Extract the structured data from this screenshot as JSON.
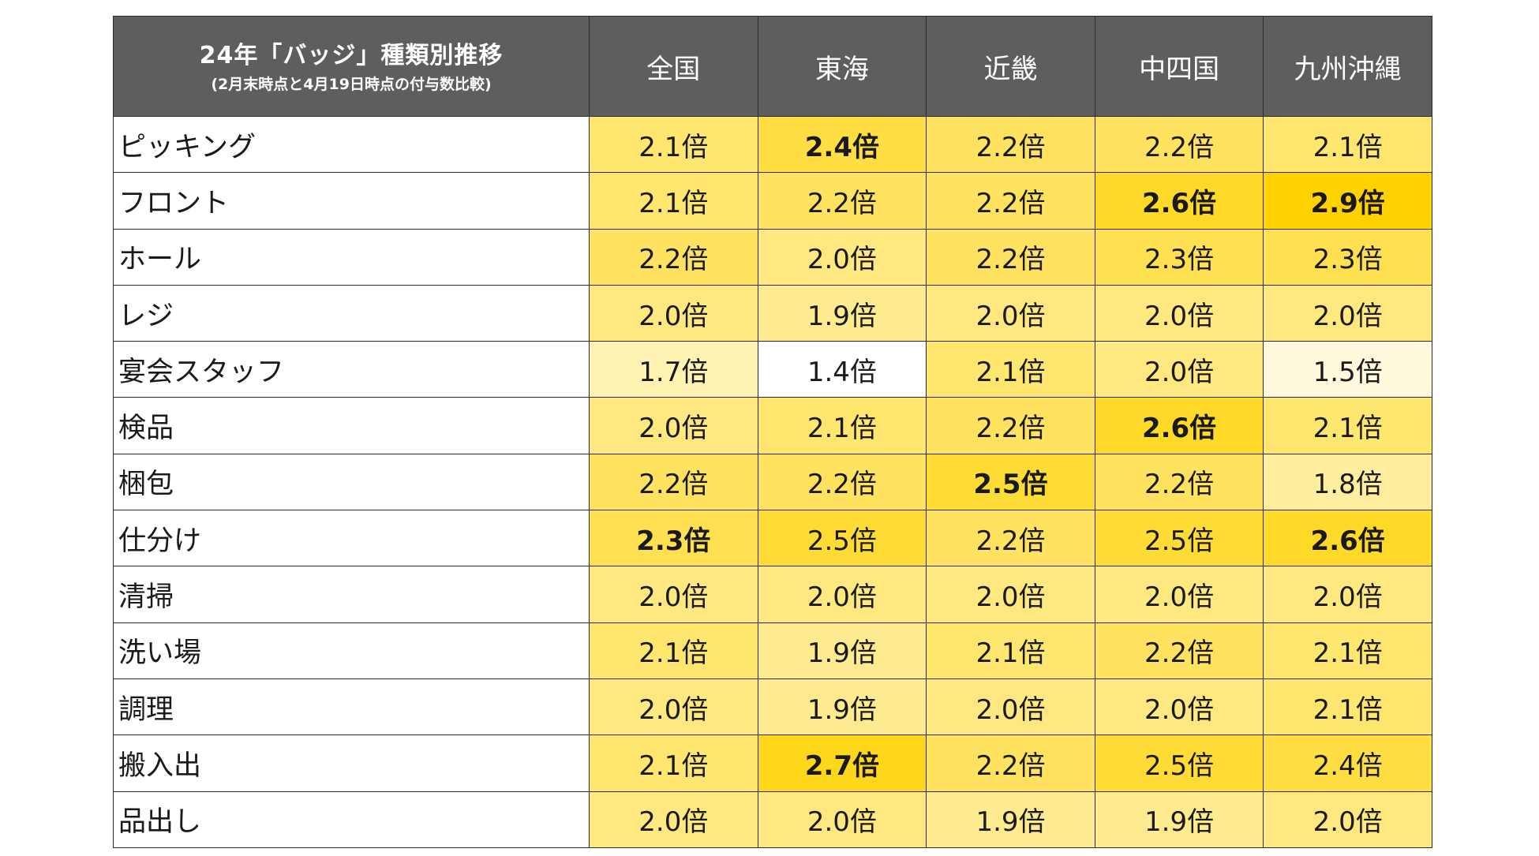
{
  "chart_data": {
    "type": "heatmap",
    "title": "24年「バッジ」種類別推移",
    "subtitle": "(2月末時点と4月19日時点の付与数比較)",
    "unit": "倍",
    "columns": [
      "全国",
      "東海",
      "近畿",
      "中四国",
      "九州沖縄"
    ],
    "rows": [
      {
        "label": "ピッキング",
        "values": [
          2.1,
          2.4,
          2.2,
          2.2,
          2.1
        ],
        "display": [
          "2.1倍",
          "2.4倍",
          "2.2倍",
          "2.2倍",
          "2.1倍"
        ]
      },
      {
        "label": "フロント",
        "values": [
          2.1,
          2.2,
          2.2,
          2.6,
          2.9
        ],
        "display": [
          "2.1倍",
          "2.2倍",
          "2.2倍",
          "2.6倍",
          "2.9倍"
        ]
      },
      {
        "label": "ホール",
        "values": [
          2.2,
          2.0,
          2.2,
          2.3,
          2.3
        ],
        "display": [
          "2.2倍",
          "2.0倍",
          "2.2倍",
          "2.3倍",
          "2.3倍"
        ]
      },
      {
        "label": "レジ",
        "values": [
          2.0,
          1.9,
          2.0,
          2.0,
          2.0
        ],
        "display": [
          "2.0倍",
          "1.9倍",
          "2.0倍",
          "2.0倍",
          "2.0倍"
        ]
      },
      {
        "label": "宴会スタッフ",
        "values": [
          1.7,
          1.4,
          2.1,
          2.0,
          1.5
        ],
        "display": [
          "1.7倍",
          "1.4倍",
          "2.1倍",
          "2.0倍",
          "1.5倍"
        ]
      },
      {
        "label": "検品",
        "values": [
          2.0,
          2.1,
          2.2,
          2.6,
          2.1
        ],
        "display": [
          "2.0倍",
          "2.1倍",
          "2.2倍",
          "2.6倍",
          "2.1倍"
        ]
      },
      {
        "label": "梱包",
        "values": [
          2.2,
          2.2,
          2.5,
          2.2,
          1.8
        ],
        "display": [
          "2.2倍",
          "2.2倍",
          "2.5倍",
          "2.2倍",
          "1.8倍"
        ]
      },
      {
        "label": "仕分け",
        "values": [
          2.3,
          2.5,
          2.2,
          2.5,
          2.6
        ],
        "display": [
          "2.3倍",
          "2.5倍",
          "2.2倍",
          "2.5倍",
          "2.6倍"
        ]
      },
      {
        "label": "清掃",
        "values": [
          2.0,
          2.0,
          2.0,
          2.0,
          2.0
        ],
        "display": [
          "2.0倍",
          "2.0倍",
          "2.0倍",
          "2.0倍",
          "2.0倍"
        ]
      },
      {
        "label": "洗い場",
        "values": [
          2.1,
          1.9,
          2.1,
          2.2,
          2.1
        ],
        "display": [
          "2.1倍",
          "1.9倍",
          "2.1倍",
          "2.2倍",
          "2.1倍"
        ]
      },
      {
        "label": "調理",
        "values": [
          2.0,
          1.9,
          2.0,
          2.0,
          2.1
        ],
        "display": [
          "2.0倍",
          "1.9倍",
          "2.0倍",
          "2.0倍",
          "2.1倍"
        ]
      },
      {
        "label": "搬入出",
        "values": [
          2.1,
          2.7,
          2.2,
          2.5,
          2.4
        ],
        "display": [
          "2.1倍",
          "2.7倍",
          "2.2倍",
          "2.5倍",
          "2.4倍"
        ]
      },
      {
        "label": "品出し",
        "values": [
          2.0,
          2.0,
          1.9,
          1.9,
          2.0
        ],
        "display": [
          "2.0倍",
          "2.0倍",
          "1.9倍",
          "1.9倍",
          "2.0倍"
        ]
      }
    ],
    "highlighted_max": [
      [
        false,
        true,
        false,
        false,
        false
      ],
      [
        false,
        false,
        false,
        true,
        true
      ],
      [
        false,
        false,
        false,
        false,
        false
      ],
      [
        false,
        false,
        false,
        false,
        false
      ],
      [
        false,
        false,
        false,
        false,
        false
      ],
      [
        false,
        false,
        false,
        true,
        false
      ],
      [
        false,
        false,
        true,
        false,
        false
      ],
      [
        true,
        false,
        false,
        false,
        true
      ],
      [
        false,
        false,
        false,
        false,
        false
      ],
      [
        false,
        false,
        false,
        false,
        false
      ],
      [
        false,
        false,
        false,
        false,
        false
      ],
      [
        false,
        true,
        false,
        false,
        false
      ],
      [
        false,
        false,
        false,
        false,
        false
      ]
    ],
    "color_scale": {
      "low": "#ffffff",
      "high": "#ffd200"
    },
    "header_background": "#5e5e5e",
    "header_text_color": "#ffffff",
    "grid": true
  }
}
